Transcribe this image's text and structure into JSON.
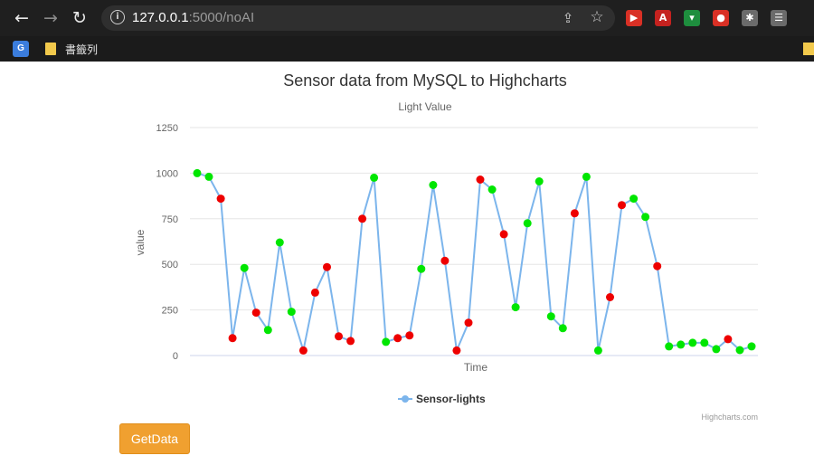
{
  "browser": {
    "back_glyph": "←",
    "forward_glyph": "→",
    "reload_glyph": "↻",
    "info_glyph": "i",
    "url_host": "127.0.0.1",
    "url_path": ":5000/noAI",
    "share_glyph": "⇪",
    "star_glyph": "☆",
    "extensions": [
      {
        "name": "extension-red-icon",
        "glyph": "▶",
        "color": "#d93025"
      },
      {
        "name": "pdf-icon",
        "glyph": "A",
        "color": "#c5221f"
      },
      {
        "name": "shield-extension-icon",
        "glyph": "▾",
        "color": "#1e8e3e"
      },
      {
        "name": "red-circle-extension-icon",
        "glyph": "●",
        "color": "#d93025"
      },
      {
        "name": "puzzle-icon",
        "glyph": "✱",
        "color": "#6b6b6b"
      },
      {
        "name": "reading-list-icon",
        "glyph": "☰",
        "color": "#6b6b6b"
      }
    ]
  },
  "bookmarks_bar": {
    "translate_glyph": "G",
    "label": "書籤列"
  },
  "chart_data": {
    "type": "line",
    "title": "Sensor data from MySQL to Highcharts",
    "subtitle": "Light Value",
    "xlabel": "Time",
    "ylabel": "value",
    "ylim": [
      0,
      1250
    ],
    "yticks": [
      "0",
      "250",
      "500",
      "750",
      "1000",
      "1250"
    ],
    "grid": "horizontal",
    "legend_position": "bottom-center",
    "credit": "Highcharts.com",
    "line_color": "#7cb5ec",
    "marker_colors": {
      "up": "#00e600",
      "down": "#ee0000"
    },
    "series": [
      {
        "name": "Sensor-lights",
        "values": [
          1000,
          980,
          860,
          95,
          480,
          235,
          140,
          620,
          240,
          28,
          345,
          485,
          105,
          80,
          750,
          975,
          75,
          95,
          110,
          475,
          935,
          520,
          28,
          180,
          965,
          910,
          665,
          265,
          725,
          955,
          215,
          150,
          780,
          980,
          28,
          320,
          825,
          860,
          760,
          490,
          50,
          60,
          70,
          70,
          35,
          90,
          30,
          50
        ],
        "marker": [
          "up",
          "up",
          "down",
          "down",
          "up",
          "down",
          "up",
          "up",
          "up",
          "down",
          "down",
          "down",
          "down",
          "down",
          "down",
          "up",
          "up",
          "down",
          "down",
          "up",
          "up",
          "down",
          "down",
          "down",
          "down",
          "up",
          "down",
          "up",
          "up",
          "up",
          "up",
          "up",
          "down",
          "up",
          "up",
          "down",
          "down",
          "up",
          "up",
          "down",
          "up",
          "up",
          "up",
          "up",
          "up",
          "down",
          "up",
          "up"
        ]
      }
    ]
  },
  "button": {
    "label": "GetData"
  }
}
